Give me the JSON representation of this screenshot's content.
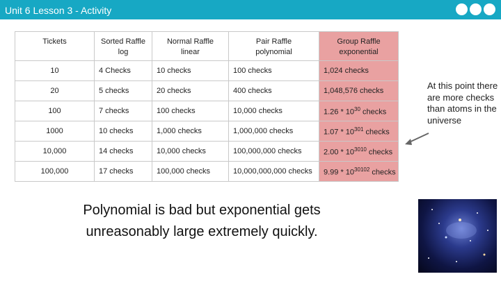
{
  "header": {
    "title": "Unit 6 Lesson 3 - Activity"
  },
  "table": {
    "columns": [
      {
        "name": "Tickets",
        "sub": ""
      },
      {
        "name": "Sorted Raffle",
        "sub": "log"
      },
      {
        "name": "Normal Raffle",
        "sub": "linear"
      },
      {
        "name": "Pair Raffle",
        "sub": "polynomial"
      },
      {
        "name": "Group Raffle",
        "sub": "exponential"
      }
    ],
    "rows": [
      {
        "tickets": "10",
        "sorted": "4 Checks",
        "normal": "10 checks",
        "pair": "100 checks",
        "group_base": "1,024 checks",
        "group_exp": ""
      },
      {
        "tickets": "20",
        "sorted": "5 checks",
        "normal": "20 checks",
        "pair": "400 checks",
        "group_base": "1,048,576 checks",
        "group_exp": ""
      },
      {
        "tickets": "100",
        "sorted": "7 checks",
        "normal": "100 checks",
        "pair": "10,000 checks",
        "group_base": "1.26 * 10",
        "group_exp": "30",
        "group_tail": " checks"
      },
      {
        "tickets": "1000",
        "sorted": "10 checks",
        "normal": "1,000 checks",
        "pair": "1,000,000 checks",
        "group_base": "1.07 * 10",
        "group_exp": "301",
        "group_tail": " checks"
      },
      {
        "tickets": "10,000",
        "sorted": "14 checks",
        "normal": "10,000 checks",
        "pair": "100,000,000 checks",
        "group_base": "2.00 * 10",
        "group_exp": "3010",
        "group_tail": " checks"
      },
      {
        "tickets": "100,000",
        "sorted": "17 checks",
        "normal": "100,000 checks",
        "pair": "10,000,000,000 checks",
        "group_base": "9.99 * 10",
        "group_exp": "30102",
        "group_tail": " checks"
      }
    ]
  },
  "main_text": "Polynomial is bad but exponential gets unreasonably large extremely quickly.",
  "side_note": "At this point there are more checks than atoms in the universe",
  "colors": {
    "header": "#17a8c4",
    "highlight": "#e9a1a1"
  },
  "icons": {
    "galaxy": "galaxy-image",
    "arrow": "arrow-icon"
  }
}
